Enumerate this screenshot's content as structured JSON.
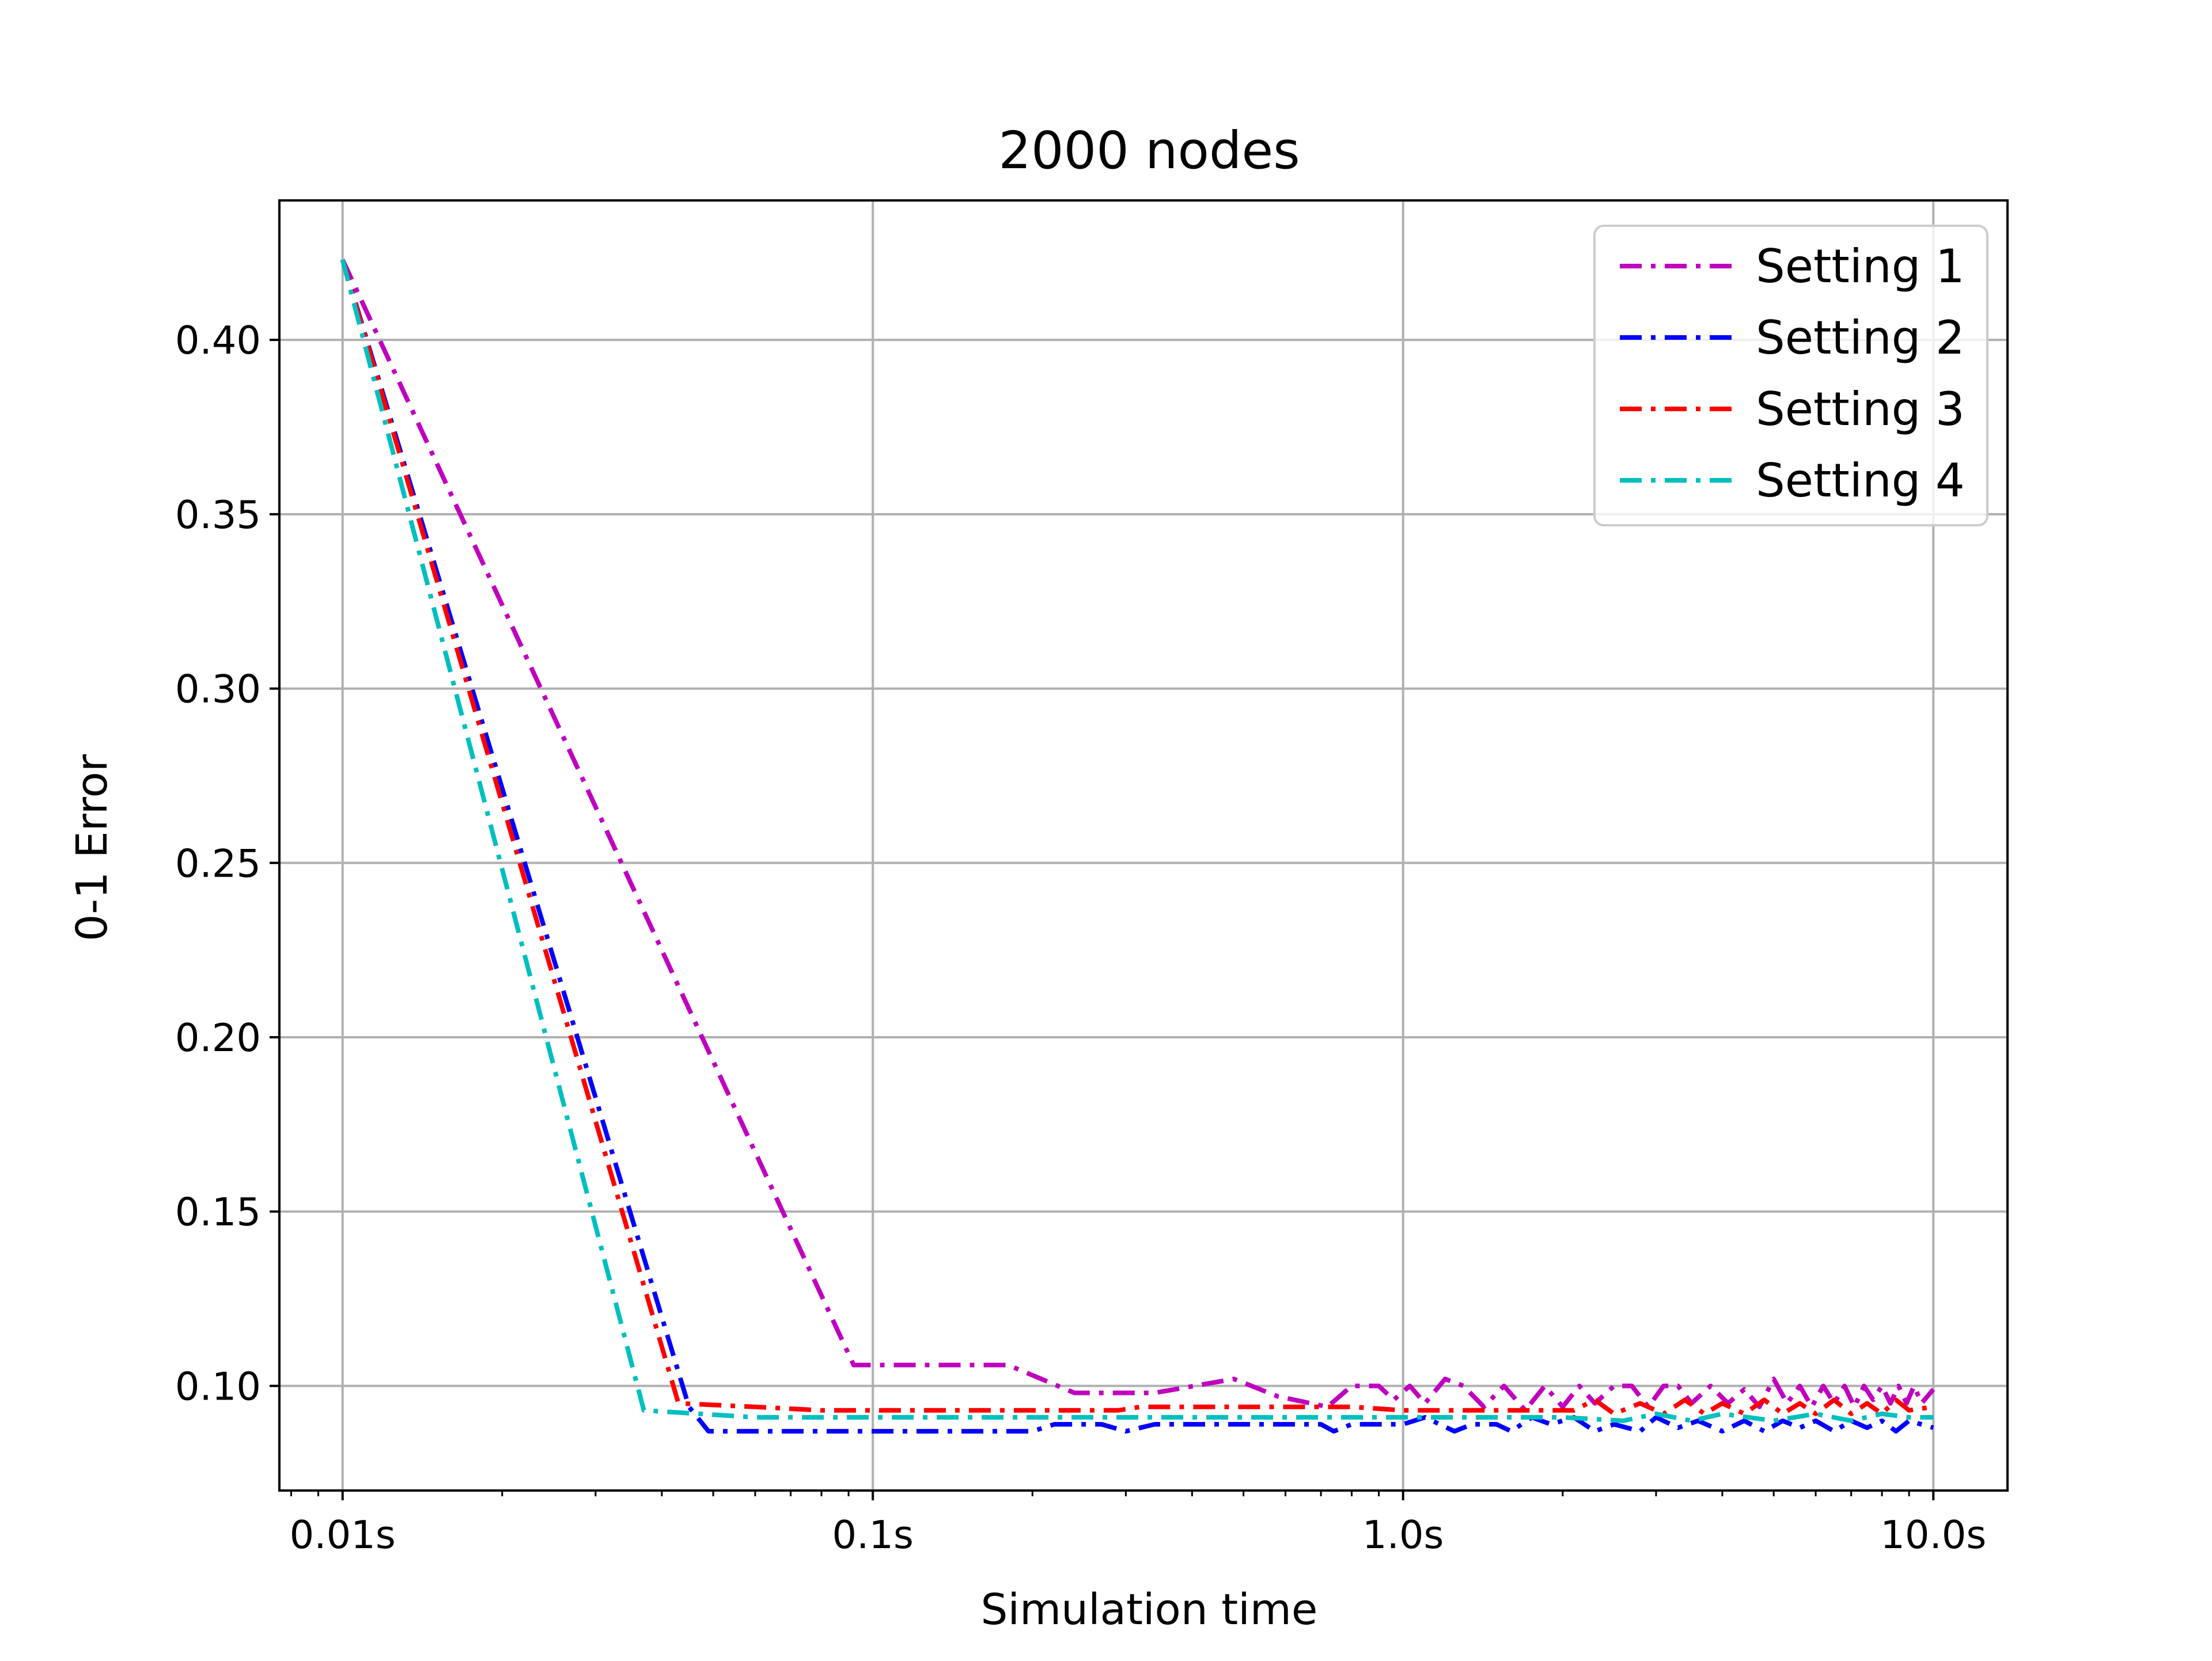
{
  "chart_data": {
    "type": "line",
    "title": "2000 nodes",
    "xlabel": "Simulation time",
    "ylabel": "0-1 Error",
    "x_scale": "log",
    "xlim": [
      0.0076,
      13.8
    ],
    "ylim": [
      0.07,
      0.44
    ],
    "x_ticks": [
      {
        "value": 0.01,
        "label": "0.01s"
      },
      {
        "value": 0.1,
        "label": "0.1s"
      },
      {
        "value": 1.0,
        "label": "1.0s"
      },
      {
        "value": 10.0,
        "label": "10.0s"
      }
    ],
    "y_ticks": [
      {
        "value": 0.1,
        "label": "0.10"
      },
      {
        "value": 0.15,
        "label": "0.15"
      },
      {
        "value": 0.2,
        "label": "0.20"
      },
      {
        "value": 0.25,
        "label": "0.25"
      },
      {
        "value": 0.3,
        "label": "0.30"
      },
      {
        "value": 0.35,
        "label": "0.35"
      },
      {
        "value": 0.4,
        "label": "0.40"
      }
    ],
    "grid": true,
    "legend_position": "top-right",
    "line_style": "dash-dot",
    "series": [
      {
        "name": "Setting 1",
        "color": "#bf00bf",
        "points": [
          [
            0.01,
            0.423
          ],
          [
            0.092,
            0.106
          ],
          [
            0.18,
            0.106
          ],
          [
            0.24,
            0.098
          ],
          [
            0.34,
            0.098
          ],
          [
            0.48,
            0.102
          ],
          [
            0.58,
            0.097
          ],
          [
            0.72,
            0.094
          ],
          [
            0.8,
            0.1
          ],
          [
            0.9,
            0.1
          ],
          [
            0.96,
            0.096
          ],
          [
            1.03,
            0.1
          ],
          [
            1.1,
            0.095
          ],
          [
            1.2,
            0.102
          ],
          [
            1.3,
            0.1
          ],
          [
            1.42,
            0.094
          ],
          [
            1.55,
            0.1
          ],
          [
            1.7,
            0.093
          ],
          [
            1.85,
            0.1
          ],
          [
            2.0,
            0.094
          ],
          [
            2.15,
            0.1
          ],
          [
            2.3,
            0.095
          ],
          [
            2.5,
            0.1
          ],
          [
            2.7,
            0.1
          ],
          [
            2.9,
            0.094
          ],
          [
            3.1,
            0.1
          ],
          [
            3.3,
            0.1
          ],
          [
            3.5,
            0.095
          ],
          [
            3.8,
            0.1
          ],
          [
            4.1,
            0.095
          ],
          [
            4.4,
            0.099
          ],
          [
            4.7,
            0.094
          ],
          [
            5.0,
            0.102
          ],
          [
            5.3,
            0.095
          ],
          [
            5.6,
            0.1
          ],
          [
            5.9,
            0.094
          ],
          [
            6.2,
            0.1
          ],
          [
            6.5,
            0.095
          ],
          [
            6.8,
            0.1
          ],
          [
            7.1,
            0.094
          ],
          [
            7.4,
            0.1
          ],
          [
            7.7,
            0.096
          ],
          [
            8.0,
            0.1
          ],
          [
            8.3,
            0.095
          ],
          [
            8.6,
            0.1
          ],
          [
            8.9,
            0.095
          ],
          [
            9.2,
            0.1
          ],
          [
            9.5,
            0.095
          ],
          [
            10.0,
            0.099
          ]
        ]
      },
      {
        "name": "Setting 2",
        "color": "#0000ff",
        "points": [
          [
            0.01,
            0.423
          ],
          [
            0.045,
            0.094
          ],
          [
            0.049,
            0.087
          ],
          [
            0.1,
            0.087
          ],
          [
            0.2,
            0.087
          ],
          [
            0.22,
            0.089
          ],
          [
            0.27,
            0.089
          ],
          [
            0.3,
            0.087
          ],
          [
            0.34,
            0.089
          ],
          [
            0.5,
            0.089
          ],
          [
            0.7,
            0.089
          ],
          [
            0.74,
            0.087
          ],
          [
            0.8,
            0.089
          ],
          [
            1.0,
            0.089
          ],
          [
            1.1,
            0.091
          ],
          [
            1.25,
            0.087
          ],
          [
            1.35,
            0.089
          ],
          [
            1.5,
            0.089
          ],
          [
            1.6,
            0.087
          ],
          [
            1.75,
            0.091
          ],
          [
            1.9,
            0.089
          ],
          [
            2.1,
            0.091
          ],
          [
            2.3,
            0.087
          ],
          [
            2.5,
            0.089
          ],
          [
            2.8,
            0.087
          ],
          [
            3.0,
            0.091
          ],
          [
            3.3,
            0.088
          ],
          [
            3.6,
            0.09
          ],
          [
            4.0,
            0.087
          ],
          [
            4.4,
            0.09
          ],
          [
            4.8,
            0.087
          ],
          [
            5.2,
            0.09
          ],
          [
            5.6,
            0.088
          ],
          [
            6.0,
            0.09
          ],
          [
            6.5,
            0.087
          ],
          [
            7.0,
            0.09
          ],
          [
            7.5,
            0.088
          ],
          [
            8.0,
            0.09
          ],
          [
            8.5,
            0.087
          ],
          [
            9.0,
            0.09
          ],
          [
            10.0,
            0.088
          ]
        ]
      },
      {
        "name": "Setting 3",
        "color": "#ff0000",
        "points": [
          [
            0.01,
            0.423
          ],
          [
            0.043,
            0.095
          ],
          [
            0.06,
            0.094
          ],
          [
            0.08,
            0.093
          ],
          [
            0.29,
            0.093
          ],
          [
            0.32,
            0.094
          ],
          [
            0.8,
            0.094
          ],
          [
            1.0,
            0.093
          ],
          [
            1.5,
            0.093
          ],
          [
            2.1,
            0.093
          ],
          [
            2.3,
            0.096
          ],
          [
            2.5,
            0.092
          ],
          [
            2.8,
            0.095
          ],
          [
            3.1,
            0.092
          ],
          [
            3.4,
            0.096
          ],
          [
            3.7,
            0.092
          ],
          [
            4.0,
            0.095
          ],
          [
            4.4,
            0.092
          ],
          [
            4.8,
            0.096
          ],
          [
            5.2,
            0.092
          ],
          [
            5.6,
            0.095
          ],
          [
            6.0,
            0.092
          ],
          [
            6.5,
            0.096
          ],
          [
            7.0,
            0.092
          ],
          [
            7.5,
            0.095
          ],
          [
            8.0,
            0.092
          ],
          [
            8.5,
            0.096
          ],
          [
            9.0,
            0.093
          ],
          [
            10.0,
            0.094
          ]
        ]
      },
      {
        "name": "Setting 4",
        "color": "#00bfbf",
        "points": [
          [
            0.01,
            0.423
          ],
          [
            0.037,
            0.093
          ],
          [
            0.06,
            0.091
          ],
          [
            0.1,
            0.091
          ],
          [
            0.5,
            0.091
          ],
          [
            1.0,
            0.091
          ],
          [
            2.0,
            0.091
          ],
          [
            2.6,
            0.09
          ],
          [
            3.0,
            0.092
          ],
          [
            3.5,
            0.09
          ],
          [
            4.0,
            0.092
          ],
          [
            5.0,
            0.09
          ],
          [
            6.0,
            0.092
          ],
          [
            7.0,
            0.09
          ],
          [
            8.0,
            0.092
          ],
          [
            9.0,
            0.091
          ],
          [
            10.0,
            0.091
          ]
        ]
      }
    ]
  }
}
